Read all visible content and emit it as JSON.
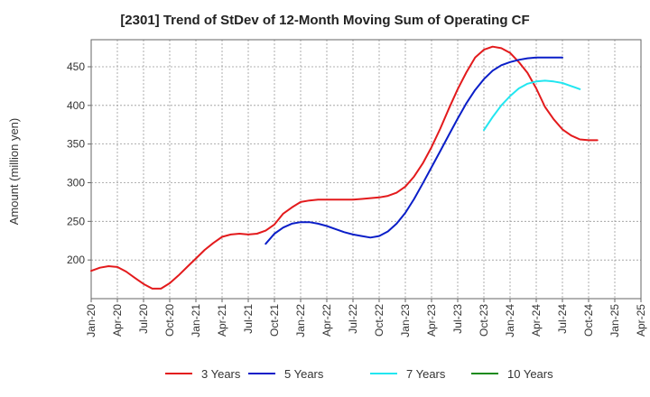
{
  "chart_data": {
    "type": "line",
    "title": "[2301]  Trend of StDev of 12-Month Moving Sum of Operating CF",
    "ylabel": "Amount (million yen)",
    "xlabel": "",
    "ylim": [
      150,
      485
    ],
    "yticks": [
      200,
      250,
      300,
      350,
      400,
      450
    ],
    "x_ticks": [
      "Jan-20",
      "Apr-20",
      "Jul-20",
      "Oct-20",
      "Jan-21",
      "Apr-21",
      "Jul-21",
      "Oct-21",
      "Jan-22",
      "Apr-22",
      "Jul-22",
      "Oct-22",
      "Jan-23",
      "Apr-23",
      "Jul-23",
      "Oct-23",
      "Jan-24",
      "Apr-24",
      "Jul-24",
      "Oct-24",
      "Jan-25",
      "Apr-25"
    ],
    "grid": true,
    "legend_position": "bottom",
    "series": [
      {
        "name": "3 Years",
        "color": "#e31a1c",
        "values": [
          [
            0,
            186
          ],
          [
            1,
            190
          ],
          [
            2,
            192
          ],
          [
            3,
            191
          ],
          [
            4,
            185
          ],
          [
            5,
            177
          ],
          [
            6,
            169
          ],
          [
            7,
            163
          ],
          [
            8,
            163
          ],
          [
            9,
            170
          ],
          [
            10,
            180
          ],
          [
            11,
            191
          ],
          [
            12,
            202
          ],
          [
            13,
            213
          ],
          [
            14,
            222
          ],
          [
            15,
            230
          ],
          [
            16,
            233
          ],
          [
            17,
            234
          ],
          [
            18,
            233
          ],
          [
            19,
            234
          ],
          [
            20,
            238
          ],
          [
            21,
            246
          ],
          [
            22,
            260
          ],
          [
            23,
            268
          ],
          [
            24,
            275
          ],
          [
            25,
            277
          ],
          [
            26,
            278
          ],
          [
            27,
            278
          ],
          [
            28,
            278
          ],
          [
            29,
            278
          ],
          [
            30,
            278
          ],
          [
            31,
            279
          ],
          [
            32,
            280
          ],
          [
            33,
            281
          ],
          [
            34,
            283
          ],
          [
            35,
            287
          ],
          [
            36,
            295
          ],
          [
            37,
            308
          ],
          [
            38,
            325
          ],
          [
            39,
            346
          ],
          [
            40,
            370
          ],
          [
            41,
            396
          ],
          [
            42,
            421
          ],
          [
            43,
            443
          ],
          [
            44,
            462
          ],
          [
            45,
            472
          ],
          [
            46,
            476
          ],
          [
            47,
            474
          ],
          [
            48,
            468
          ],
          [
            49,
            456
          ],
          [
            50,
            442
          ],
          [
            51,
            422
          ],
          [
            52,
            398
          ],
          [
            53,
            382
          ],
          [
            54,
            369
          ],
          [
            55,
            361
          ],
          [
            56,
            356
          ],
          [
            57,
            355
          ],
          [
            58,
            355
          ]
        ]
      },
      {
        "name": "5 Years",
        "color": "#0a1ec8",
        "values": [
          [
            20,
            221
          ],
          [
            21,
            234
          ],
          [
            22,
            242
          ],
          [
            23,
            247
          ],
          [
            24,
            249
          ],
          [
            25,
            249
          ],
          [
            26,
            247
          ],
          [
            27,
            244
          ],
          [
            28,
            240
          ],
          [
            29,
            236
          ],
          [
            30,
            233
          ],
          [
            31,
            231
          ],
          [
            32,
            229
          ],
          [
            33,
            231
          ],
          [
            34,
            237
          ],
          [
            35,
            247
          ],
          [
            36,
            261
          ],
          [
            37,
            279
          ],
          [
            38,
            299
          ],
          [
            39,
            320
          ],
          [
            40,
            341
          ],
          [
            41,
            362
          ],
          [
            42,
            383
          ],
          [
            43,
            403
          ],
          [
            44,
            420
          ],
          [
            45,
            434
          ],
          [
            46,
            445
          ],
          [
            47,
            452
          ],
          [
            48,
            456
          ],
          [
            49,
            459
          ],
          [
            50,
            461
          ],
          [
            51,
            462
          ],
          [
            52,
            462
          ],
          [
            53,
            462
          ],
          [
            54,
            462
          ]
        ]
      },
      {
        "name": "7 Years",
        "color": "#22e6f0",
        "values": [
          [
            45,
            368
          ],
          [
            46,
            385
          ],
          [
            47,
            400
          ],
          [
            48,
            412
          ],
          [
            49,
            422
          ],
          [
            50,
            428
          ],
          [
            51,
            431
          ],
          [
            52,
            432
          ],
          [
            53,
            431
          ],
          [
            54,
            429
          ],
          [
            55,
            425
          ],
          [
            56,
            421
          ]
        ]
      },
      {
        "name": "10 Years",
        "color": "#1a8a1a",
        "values": []
      }
    ]
  }
}
